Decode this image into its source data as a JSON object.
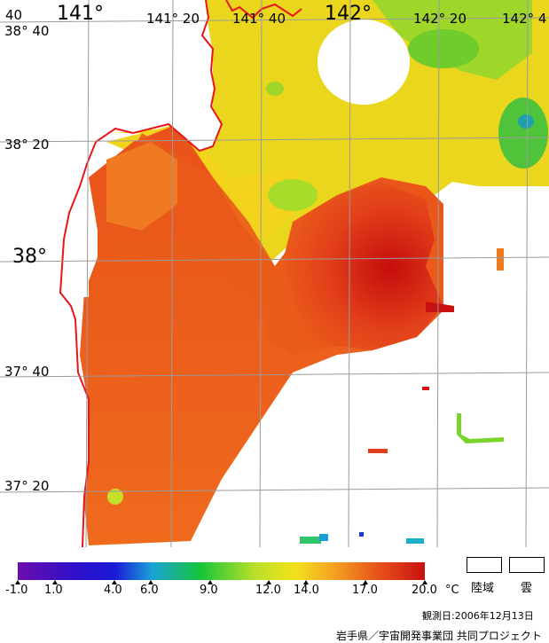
{
  "map": {
    "lon_labels": [
      {
        "text": "40",
        "major": false
      },
      {
        "text": "141°",
        "major": true
      },
      {
        "text": "141° 20",
        "major": false
      },
      {
        "text": "141° 40",
        "major": false
      },
      {
        "text": "142°",
        "major": true
      },
      {
        "text": "142° 20",
        "major": false
      },
      {
        "text": "142° 4",
        "major": false
      }
    ],
    "lat_labels": [
      {
        "text": "38° 40",
        "major": false
      },
      {
        "text": "38° 20",
        "major": false
      },
      {
        "text": "38°",
        "major": true
      },
      {
        "text": "37° 40",
        "major": false
      },
      {
        "text": "37° 20",
        "major": false
      }
    ],
    "colors": {
      "coast": "#e8151a",
      "grid": "#a0a0a0",
      "land": "#ffffff"
    }
  },
  "legend": {
    "unit": "°C",
    "ticks": [
      "-1.0",
      "1.0",
      "4.0",
      "6.0",
      "9.0",
      "12.0",
      "14.0",
      "17.0",
      "20.0"
    ],
    "land_label": "陸域",
    "cloud_label": "雲",
    "colors": [
      "#6a0dad",
      "#1a1ad8",
      "#1aa3d8",
      "#18c43a",
      "#b8e02a",
      "#f2e21a",
      "#f5a623",
      "#e8561a",
      "#c81010"
    ]
  },
  "footer": {
    "observation_date": "観測日:2006年12月13日",
    "credit": "岩手県／宇宙開発事業団 共同プロジェクト"
  }
}
